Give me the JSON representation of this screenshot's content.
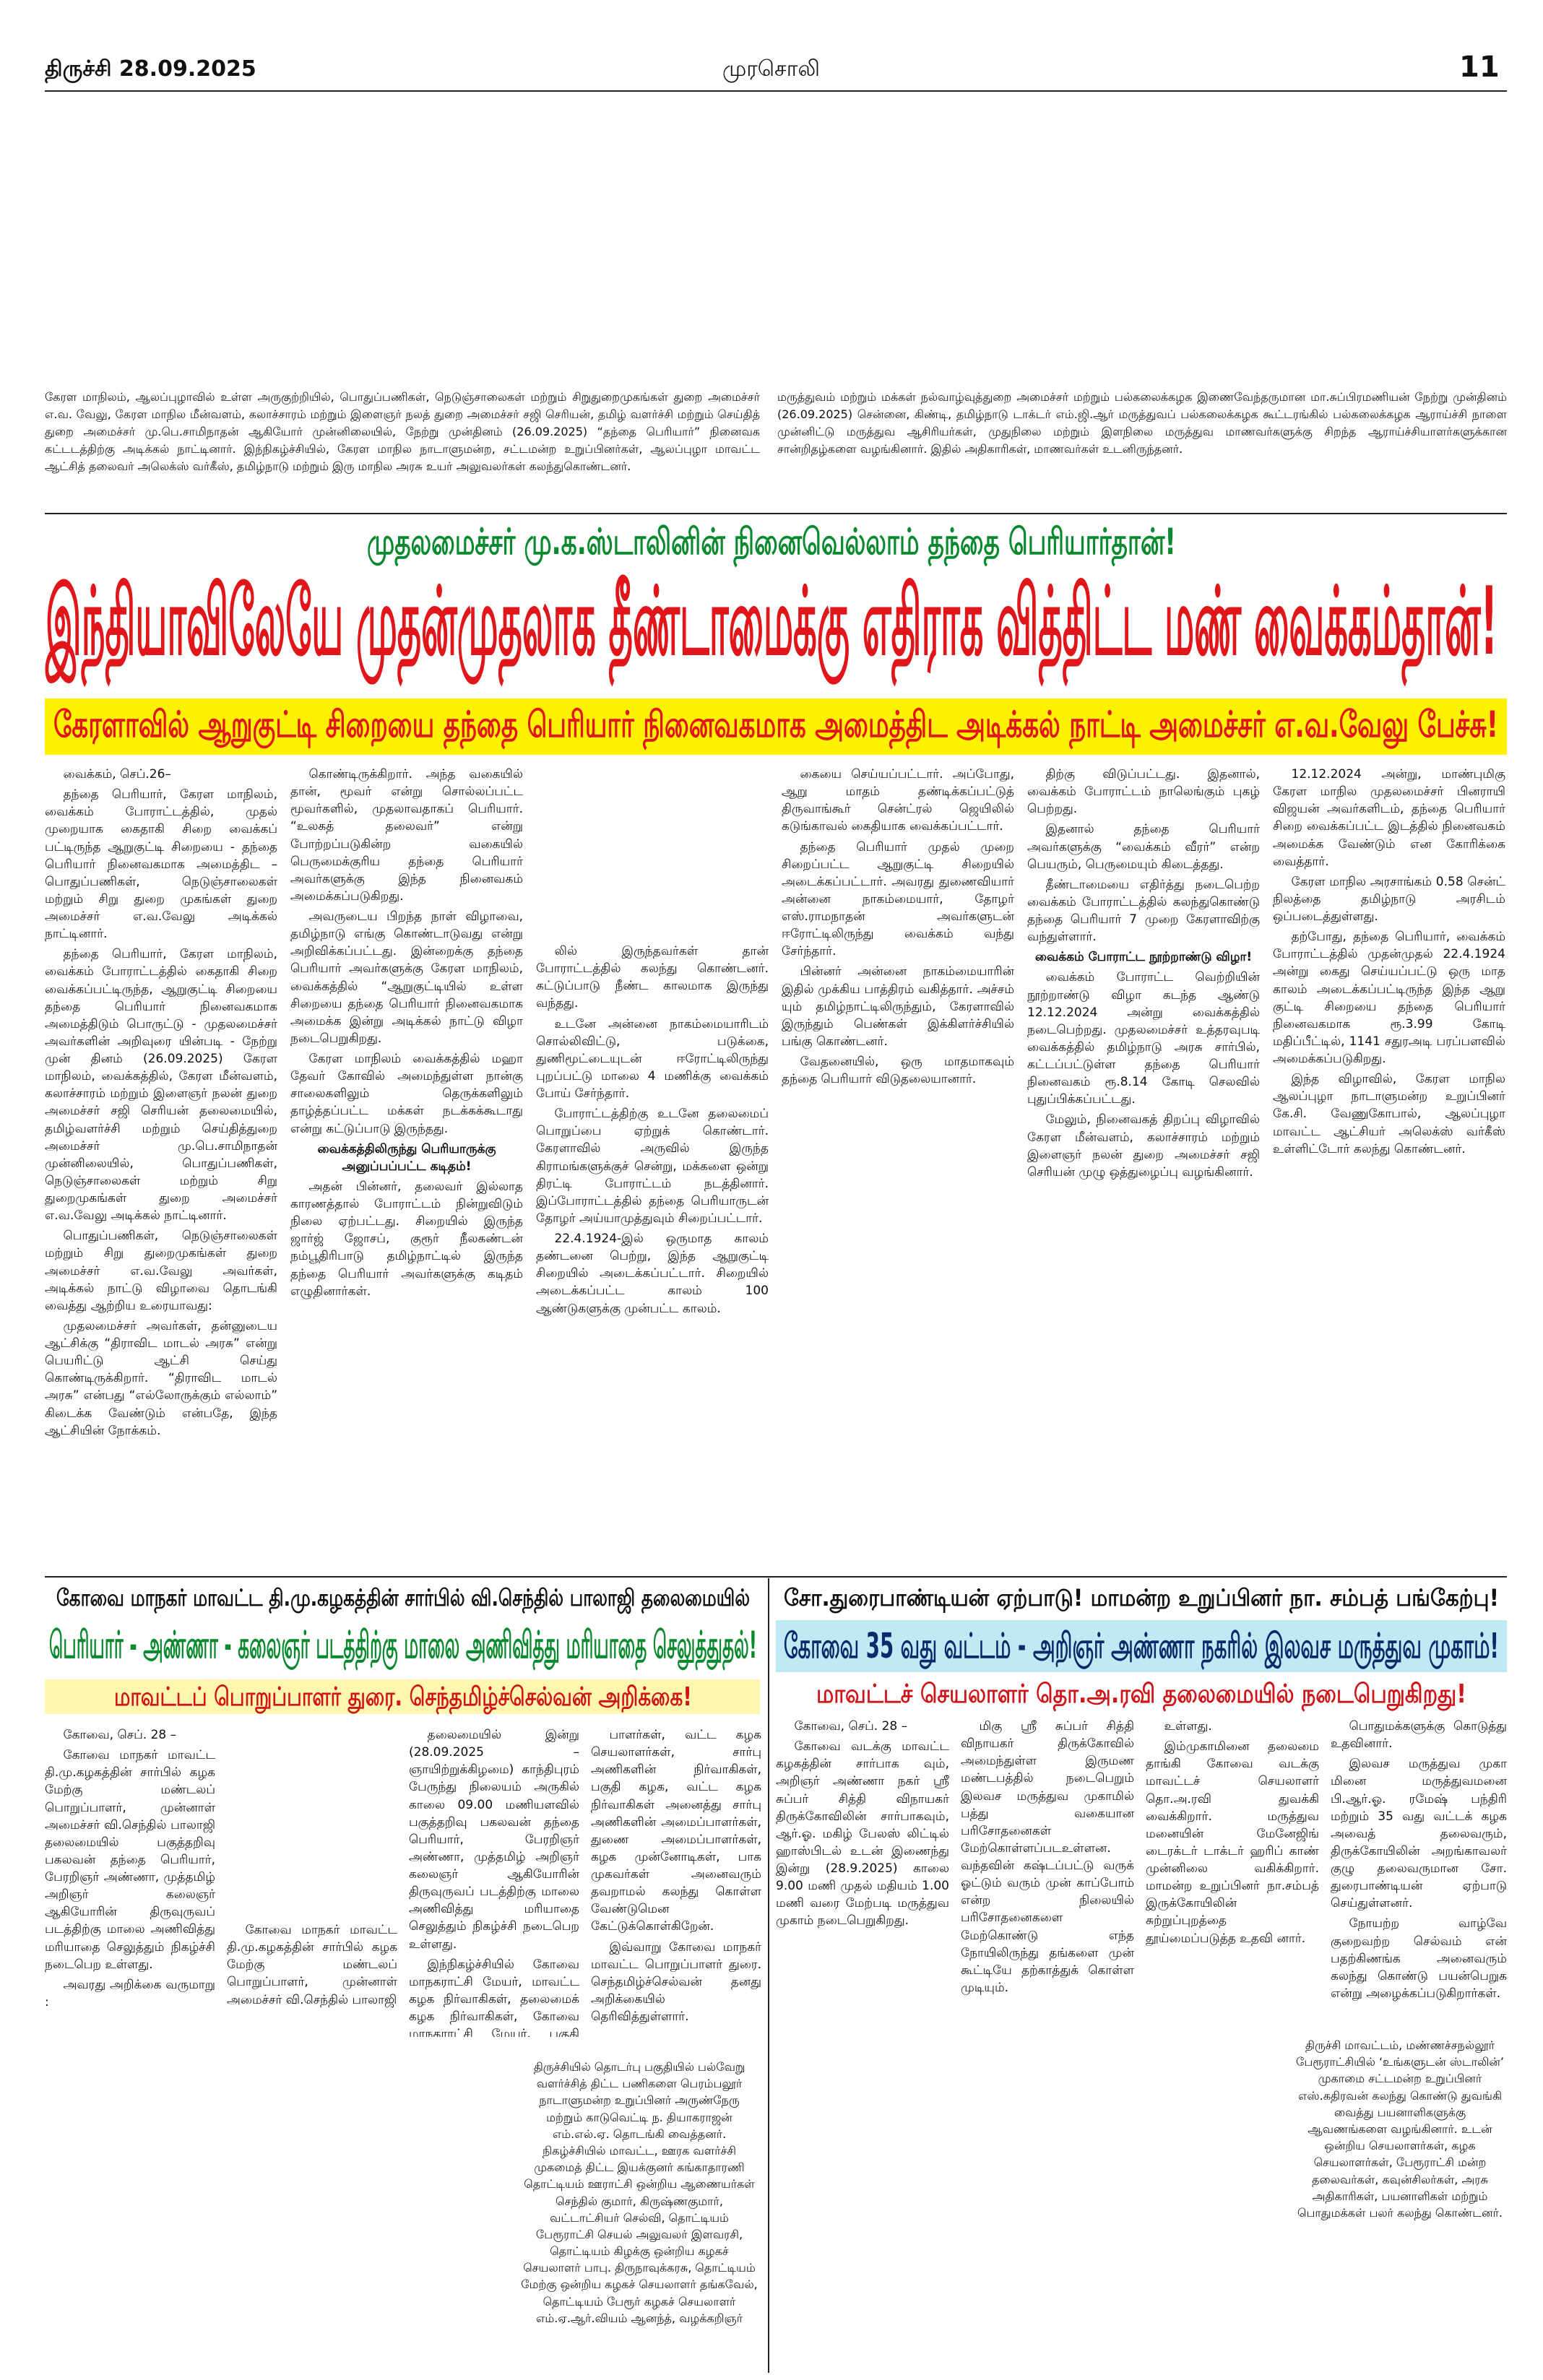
{
  "header": {
    "city_date": "திருச்சி  28.09.2025",
    "paper": "முரசொலி",
    "page": "11"
  },
  "top_brief": {
    "left": "கேரள மாநிலம், ஆலப்புழாவில் உள்ள அருகுற்றியில், பொதுப்பணிகள், நெடுஞ்சாலைகள் மற்றும் சிறுதுறைமுகங்கள் துறை அமைச்சர் எ.வ. வேலு, கேரள மாநில மீன்வளம், கலாச்சாரம் மற்றும் இளைஞர் நலத் துறை அமைச்சர் சஜி செரியன், தமிழ் வளர்ச்சி மற்றும் செய்தித் துறை அமைச்சர் மு.பெ.சாமிநாதன் ஆகியோர் முன்னிலையில், நேற்று முன்தினம் (26.09.2025) “தந்தை பெரியார்” நினைவக கட்டடத்திற்கு அடிக்கல் நாட்டினார். இந்நிகழ்ச்சியில், கேரள மாநில நாடாளுமன்ற, சட்டமன்ற உறுப்பினர்கள், ஆலப்புழா மாவட்ட ஆட்சித் தலைவர் அலெக்ஸ் வர்கீஸ், தமிழ்நாடு மற்றும் இரு மாநில அரசு உயர் அலுவலர்கள் கலந்துகொண்டனர்.",
    "right": "மருத்துவம் மற்றும் மக்கள் நல்வாழ்வுத்துறை அமைச்சர் மற்றும் பல்கலைக்கழக இணைவேந்தருமான மா.சுப்பிரமணியன் நேற்று முன்தினம் (26.09.2025) சென்னை, கிண்டி, தமிழ்நாடு டாக்டர் எம்.ஜி.ஆர் மருத்துவப் பல்கலைக்கழக கூட்டரங்கில் பல்கலைக்கழக ஆராய்ச்சி நாளை முன்னிட்டு மருத்துவ ஆசிரியர்கள், முதுநிலை மற்றும் இளநிலை மருத்துவ மாணவர்களுக்கு சிறந்த ஆராய்ச்சியாளர்களுக்கான சான்றிதழ்களை வழங்கினார். இதில் அதிகாரிகள், மாணவர்கள் உடனிருந்தனர்."
  },
  "main_story": {
    "kicker": "முதலமைச்சர் மு.க.ஸ்டாலினின் நினைவெல்லாம் தந்தை பெரியார்தான்!",
    "headline": "இந்தியாவிலேயே முதன்முதலாக தீண்டாமைக்கு எதிராக வித்திட்ட மண் வைக்கம்தான்!",
    "subhead": "கேரளாவில் ஆறுகுட்டி சிறையை தந்தை பெரியார் நினைவகமாக அமைத்திட அடிக்கல் நாட்டி அமைச்சர் எ.வ.வேலு பேச்சு!",
    "columns": [
      [
        "வைக்கம், செப்.26–",
        "தந்தை பெரியார், கேரள மாநிலம், வைக்கம் போராட்டத்தில், முதல் முறையாக கைதாகி சிறை வைக்கப் பட்டிருந்த ஆறுகுட்டி சிறையை - தந்தை பெரியார் நினைவகமாக அமைத்திட – பொதுப்பணிகள், நெடுஞ்சாலைகள் மற்றும் சிறு துறை முகங்கள் துறை அமைச்சர் எ.வ.வேலு அடிக்கல் நாட்டினார்.",
        "தந்தை பெரியார், கேரள மாநிலம், வைக்கம் போராட்டத்தில் கைதாகி சிறை வைக்கப்பட்டிருந்த, ஆறுகுட்டி சிறையை தந்தை பெரியார் நினைவகமாக அமைத்திடும் பொருட்டு - முதலமைச்சர் அவர்களின் அறிவுரை யின்படி - நேற்று முன் தினம் (26.09.2025) கேரள மாநிலம், வைக்கத்தில், கேரள மீன்வளம், கலாச்சாரம் மற்றும் இளைஞர் நலன் துறை அமைச்சர் சஜி செரியன் தலைமையில், தமிழ்வளர்ச்சி மற்றும் செய்தித்துறை அமைச்சர் மு.பெ.சாமிநாதன் முன்னிலையில், பொதுப்பணிகள், நெடுஞ்சாலைகள் மற்றும் சிறு துறைமுகங்கள் துறை அமைச்சர் எ.வ.வேலு அடிக்கல் நாட்டினார்.",
        "பொதுப்பணிகள், நெடுஞ்சாலைகள் மற்றும் சிறு துறைமுகங்கள் துறை அமைச்சர் எ.வ.வேலு அவர்கள், அடிக்கல் நாட்டு விழாவை தொடங்கி வைத்து ஆற்றிய உரையாவது:",
        "முதலமைச்சர் அவர்கள், தன்னுடைய ஆட்சிக்கு “திராவிட மாடல் அரசு” என்று பெயரிட்டு ஆட்சி செய்து கொண்டிருக்கிறார். “திராவிட மாடல் அரசு” என்பது “எல்லோருக்கும் எல்லாம்” கிடைக்க வேண்டும் என்பதே, இந்த ஆட்சியின் நோக்கம்."
      ],
      [
        "கொண்டிருக்கிறார். அந்த வகையில் தான், மூவர் என்று சொல்லப்பட்ட மூவர்களில், முதலாவதாகப் பெரியார். “உலகத் தலைவர்” என்று போற்றப்படுகின்ற வகையில் பெருமைக்குரிய தந்தை பெரியார் அவர்களுக்கு இந்த நினைவகம் அமைக்கப்படுகிறது.",
        "அவருடைய பிறந்த நாள் விழாவை, தமிழ்நாடு எங்கு கொண்டாடுவது என்று அறிவிக்கப்பட்டது. இன்றைக்கு தந்தை பெரியார் அவர்களுக்கு கேரள மாநிலம், வைக்கத்தில் “ஆறுகுட்டியில் உள்ள சிறையை தந்தை பெரியார் நினைவகமாக அமைக்க இன்று அடிக்கல் நாட்டு விழா நடைபெறுகிறது.",
        "கேரள மாநிலம் வைக்கத்தில் மஹா தேவர் கோவில் அமைந்துள்ள நான்கு சாலைகளிலும் தெருக்களிலும் தாழ்த்தப்பட்ட மக்கள் நடக்கக்கூடாது என்று கட்டுப்பாடு இருந்தது.",
        "வைக்கத்திலிருந்து பெரியாருக்கு அனுப்பப்பட்ட கடிதம்!",
        "அதன் பின்னர், தலைவர் இல்லாத காரணத்தால் போராட்டம் நின்றுவிடும் நிலை ஏற்பட்டது. சிறையில் இருந்த ஜார்ஜ் ஜோசப், குரூர் நீலகண்டன் நம்பூதிரிபாடு தமிழ்நாட்டில் இருந்த தந்தை பெரியார் அவர்களுக்கு கடிதம் எழுதினார்கள்."
      ],
      [
        "லில் இருந்தவர்கள் தான் போராட்டத்தில் கலந்து கொண்டனர். கட்டுப்பாடு நீண்ட காலமாக இருந்து வந்தது.",
        "உடனே அன்னை நாகம்மையாரிடம் சொல்லிவிட்டு, படுக்கை, துணிமூட்டையுடன் ஈரோட்டிலிருந்து புறப்பட்டு மாலை 4 மணிக்கு வைக்கம் போய் சேர்ந்தார்.",
        "போராட்டத்திற்கு உடனே தலைமைப் பொறுப்பை ஏற்றுக் கொண்டார். கேரளாவில் அருவில் இருந்த கிராமங்களுக்குச் சென்று, மக்களை ஒன்று திரட்டி போராட்டம் நடத்தினார். இப்போராட்டத்தில் தந்தை பெரியாருடன் தோழர் அய்யாமுத்துவும் சிறைப்பட்டார்.",
        "22.4.1924-இல் ஒருமாத காலம் தண்டனை பெற்று, இந்த ஆறுகுட்டி சிறையில் அடைக்கப்பட்டார். சிறையில் அடைக்கப்பட்ட காலம் 100 ஆண்டுகளுக்கு முன்பட்ட காலம்."
      ],
      [
        "கையை செய்யப்பட்டார். அப்போது, ஆறு மாதம் தண்டிக்கப்பட்டுத் திருவாங்கூர் சென்ட்ரல் ஜெயிலில் கடுங்காவல் கைதியாக வைக்கப்பட்டார்.",
        "தந்தை பெரியார் முதல் முறை சிறைப்பட்ட ஆறுகுட்டி சிறையில் அடைக்கப்பட்டார். அவரது துணைவியார் அன்னை நாகம்மையார், தோழர் எஸ்.ராமநாதன் அவர்களுடன் ஈரோட்டிலிருந்து வைக்கம் வந்து சேர்ந்தார்.",
        "பின்னர் அன்னை நாகம்மையாரின் இதில் முக்கிய பாத்திரம் வகித்தார். அச்சம் யும் தமிழ்நாட்டிலிருந்தும், கேரளாவில் இருந்தும் பெண்கள் இக்கிளர்ச்சியில் பங்கு கொண்டனர்.",
        "வேதனையில், ஒரு மாதமாகவும் தந்தை பெரியார் விடுதலையானார்."
      ],
      [
        "திற்கு விடுப்பட்டது. இதனால், வைக்கம் போராட்டம் நாலெங்கும் புகழ் பெற்றது.",
        "இதனால் தந்தை பெரியார் அவர்களுக்கு “வைக்கம் வீரர்” என்ற பெயரும், பெருமையும் கிடைத்தது.",
        "தீண்டாமையை எதிர்த்து நடைபெற்ற வைக்கம் போராட்டத்தில் கலந்துகொண்டு தந்தை பெரியார் 7 முறை கேரளாவிற்கு வந்துள்ளார்.",
        "வைக்கம் போராட்ட நூற்றாண்டு விழா!",
        "வைக்கம் போராட்ட வெற்றியின் நூற்றாண்டு விழா கடந்த ஆண்டு 12.12.2024 அன்று வைக்கத்தில் நடைபெற்றது. முதலமைச்சர் உத்தரவுபடி வைக்கத்தில் தமிழ்நாடு அரசு சார்பில், கட்டப்பட்டுள்ள தந்தை பெரியார் நினைவகம் ரூ.8.14 கோடி செலவில் புதுப்பிக்கப்பட்டது.",
        "மேலும், நினைவகத் திறப்பு விழாவில் கேரள மீன்வளம், கலாச்சாரம் மற்றும் இளைஞர் நலன் துறை அமைச்சர் சஜி செரியன் முழு ஒத்துழைப்பு வழங்கினார்."
      ],
      [
        "12.12.2024 அன்று, மாண்புமிகு கேரள மாநில முதலமைச்சர் பினராயி விஜயன் அவர்களிடம், தந்தை பெரியார் சிறை வைக்கப்பட்ட இடத்தில் நினைவகம் அமைக்க வேண்டும் என கோரிக்கை வைத்தார்.",
        "கேரள மாநில அரசாங்கம் 0.58 சென்ட் நிலத்தை தமிழ்நாடு அரசிடம் ஒப்படைத்துள்ளது.",
        "தற்போது, தந்தை பெரியார், வைக்கம் போராட்டத்தில் முதன்முதல் 22.4.1924 அன்று கைது செய்யப்பட்டு ஒரு மாத காலம் அடைக்கப்பட்டிருந்த இந்த ஆறு குட்டி சிறையை தந்தை பெரியார் நினைவகமாக ரூ.3.99 கோடி மதிப்பீட்டில், 1141 சதுரஅடி பரப்பளவில் அமைக்கப்படுகிறது.",
        "இந்த விழாவில், கேரள மாநில ஆலப்புழா நாடாளுமன்ற உறுப்பினர் கே.சி. வேணுகோபால், ஆலப்புழா மாவட்ட ஆட்சியர் அலெக்ஸ் வர்கீஸ் உள்ளிட்டோர் கலந்து கொண்டனர்."
      ]
    ]
  },
  "story_left": {
    "kicker": "கோவை மாநகர் மாவட்ட தி.மு.கழகத்தின் சார்பில் வி.செந்தில் பாலாஜி தலைமையில்",
    "headline": "பெரியார் - அண்ணா - கலைஞர் படத்திற்கு மாலை அணிவித்து மரியாதை செலுத்துதல்!",
    "subhead": "மாவட்டப் பொறுப்பாளர் துரை. செந்தமிழ்ச்செல்வன் அறிக்கை!",
    "columns": [
      [
        "கோவை, செப். 28 –",
        "கோவை மாநகர் மாவட்ட தி.மு.கழகத்தின் சார்பில் கழக மேற்கு மண்டலப் பொறுப்பாளர், முன்னாள் அமைச்சர் வி.செந்தில் பாலாஜி தலைமையில் பகுத்தறிவு பகலவன் தந்தை பெரியார், பேரறிஞர் அண்ணா, முத்தமிழ் அறிஞர் கலைஞர் ஆகியோரின் திருவுருவப் படத்திற்கு மாலை அணிவித்து மரியாதை செலுத்தும் நிகழ்ச்சி நடைபெற உள்ளது.",
        "அவரது அறிக்கை வருமாறு :"
      ],
      [
        "கோவை மாநகர் மாவட்ட தி.மு.கழகத்தின் சார்பில் கழக மேற்கு மண்டலப் பொறுப்பாளர், முன்னாள் அமைச்சர் வி.செந்தில் பாலாஜி"
      ],
      [
        "தலைமையில் இன்று (28.09.2025 – ஞாயிற்றுக்கிழமை) காந்திபுரம் பேருந்து நிலையம் அருகில் காலை 09.00 மணியளவில் பகுத்தறிவு பகலவன் தந்தை பெரியார், பேரறிஞர் அண்ணா, முத்தமிழ் அறிஞர் கலைஞர் ஆகியோரின் திருவுருவப் படத்திற்கு மாலை அணிவித்து மரியாதை செலுத்தும் நிகழ்ச்சி நடைபெற உள்ளது.",
        "இந்நிகழ்ச்சியில் கோவை மாநகராட்சி மேயர், மாவட்ட கழக நிர்வாகிகள், தலைமைக் கழக நிர்வாகிகள், கோவை மாநகராட்சி மேயர், பகுதி கழக பொறுப்பாளர்கள் கலந்து கொள்கின்றனர்."
      ],
      [
        "பாளர்கள், வட்ட கழக செயலாளர்கள், சார்பு அணிகளின் நிர்வாகிகள், பகுதி கழக, வட்ட கழக நிர்வாகிகள் அனைத்து சார்பு அணிகளின் அமைப்பாளர்கள், துணை அமைப்பாளர்கள், கழக முன்னோடிகள், பாக முகவர்கள் அனைவரும் தவறாமல் கலந்து கொள்ள வேண்டுமென கேட்டுக்கொள்கிறேன்.",
        "இவ்வாறு கோவை மாநகர் மாவட்ட பொறுப்பாளர் துரை. செந்தமிழ்ச்செல்வன் தனது அறிக்கையில் தெரிவித்துள்ளார்."
      ]
    ]
  },
  "middle_block": [
    "திருச்சியில் தொடர்பு பகுதியில் பல்வேறு வளர்ச்சித் திட்ட பணிகளை பெரம்பலூர் நாடாளுமன்ற உறுப்பினர் அருண்நேரு மற்றும் காடுவெட்டி ந. தியாகராஜன் எம்.எல்.ஏ. தொடங்கி வைத்தனர். நிகழ்ச்சியில் மாவட்ட, ஊரக வளர்ச்சி முகமைத் திட்ட இயக்குனர் கங்காதாரணி தொட்டியம் ஊராட்சி ஒன்றிய ஆணையர்கள் செந்தில் குமார், கிருஷ்ணகுமார், வட்டாட்சியர் செல்வி, தொட்டியம் பேரூராட்சி செயல் அலுவலர் இளவரசி, தொட்டியம் கிழக்கு ஒன்றிய கழகச் செயலாளர் பாபு. திருநாவுக்கரசு, தொட்டியம் மேற்கு ஒன்றிய கழகச் செயலாளர் தங்கவேல், தொட்டியம் பேரூர் கழகச் செயலாளர் எம்.ஏ.ஆர்.வியம் ஆனந்த், வழக்கறிஞர் நவீரான் மணிவாரதி உட்பட பலர் கலந்து கொண்டனர்."
  ],
  "story_right": {
    "kicker": "சோ.துரைபாண்டியன் ஏற்பாடு! மாமன்ற உறுப்பினர் நா. சம்பத் பங்கேற்பு!",
    "headline": "கோவை 35 வது வட்டம் - அறிஞர் அண்ணா நகரில் இலவச மருத்துவ முகாம்!",
    "subhead": "மாவட்டச் செயலாளர் தொ.அ.ரவி தலைமையில் நடைபெறுகிறது!",
    "columns": [
      [
        "கோவை, செப். 28 –",
        "கோவை வடக்கு மாவட்ட கழகத்தின் சார்பாக வும், அறிஞர் அண்ணா நகர் ஸ்ரீ சுப்பர் சித்தி விநாயகர் திருக்கோவிலின் சார்பாகவும், ஆர்.ஓ. மகிழ் பேலஸ் லிட்டில் ஹாஸ்பிடல் உடன் இணைந்து இன்று (28.9.2025) காலை 9.00 மணி முதல் மதியம் 1.00 மணி வரை மேற்படி மருத்துவ முகாம் நடைபெறுகிறது."
      ],
      [
        "மிகு ஸ்ரீ சுப்பர் சித்தி விநாயகர் திருக்கோவில் அமைந்துள்ள இருமண மண்டபத்தில் நடைபெறும் இலவச மருத்துவ முகாமில் பத்து வகையான பரிசோதனைகள் மேற்கொள்ளப்படஉள்ளன. வந்தவின் கஷ்டப்பட்டு வருக் ஓட்டும் வரும் முன் காப்போம் என்ற நிலையில் பரிசோதனைகளை மேற்கொண்டு எந்த நோயிலிருந்து தங்களை முன் கூட்டியே தற்காத்துக் கொள்ள முடியும்."
      ],
      [
        "உள்ளது.",
        "இம்முகாமினை தலைமை தாங்கி கோவை வடக்கு மாவட்டச் செயலாளர் தொ.அ.ரவி துவக்கி வைக்கிறார். மருத்துவ மனையின் மேனேஜிங் டைரக்டர் டாக்டர் ஹரிப் காண் முன்னிலை வகிக்கிறார். மாமன்ற உறுப்பினர் நா.சம்பத் இருக்கோயிலின் சுற்றுப்புறத்தை தூய்மைப்படுத்த உதவி னார்."
      ],
      [
        "பொதுமக்களுக்கு கொடுத்து உதவினார்.",
        "இலவச மருத்துவ முகா மினை மருத்துவமனை பி.ஆர்.ஓ. ரமேஷ் பந்திரி மற்றும் 35 வது வட்டக் கழக அவைத் தலைவரும், திருக்கோயிலின் அறங்காவலர் குழு தலைவருமான சோ. துரைபாண்டியன் ஏற்பாடு செய்துள்ளனர்.",
        "நோயற்ற வாழ்வே குறைவற்ற செல்வம் என் பதற்கிணங்க அனைவரும் கலந்து கொண்டு பயன்பெறுக என்று அழைக்கப்படுகிறார்கள்."
      ]
    ]
  },
  "bottom_right_block": "திருச்சி மாவட்டம், மண்ணச்சநல்லூர் பேரூராட்சியில் ‘உங்களுடன் ஸ்டாலின்’ முகாமை சட்டமன்ற உறுப்பினர் எஸ்.கதிரவன் கலந்து கொண்டு துவங்கி வைத்து பயனாளிகளுக்கு ஆவணங்களை வழங்கினார். உடன் ஒன்றிய செயலாளர்கள், கழக செயலாளர்கள், பேரூராட்சி மன்ற தலைவர்கள், கவுன்சிலர்கள், அரசு அதிகாரிகள், பயனாளிகள் மற்றும் பொதுமக்கள் பலர் கலந்து கொண்டனர்."
}
